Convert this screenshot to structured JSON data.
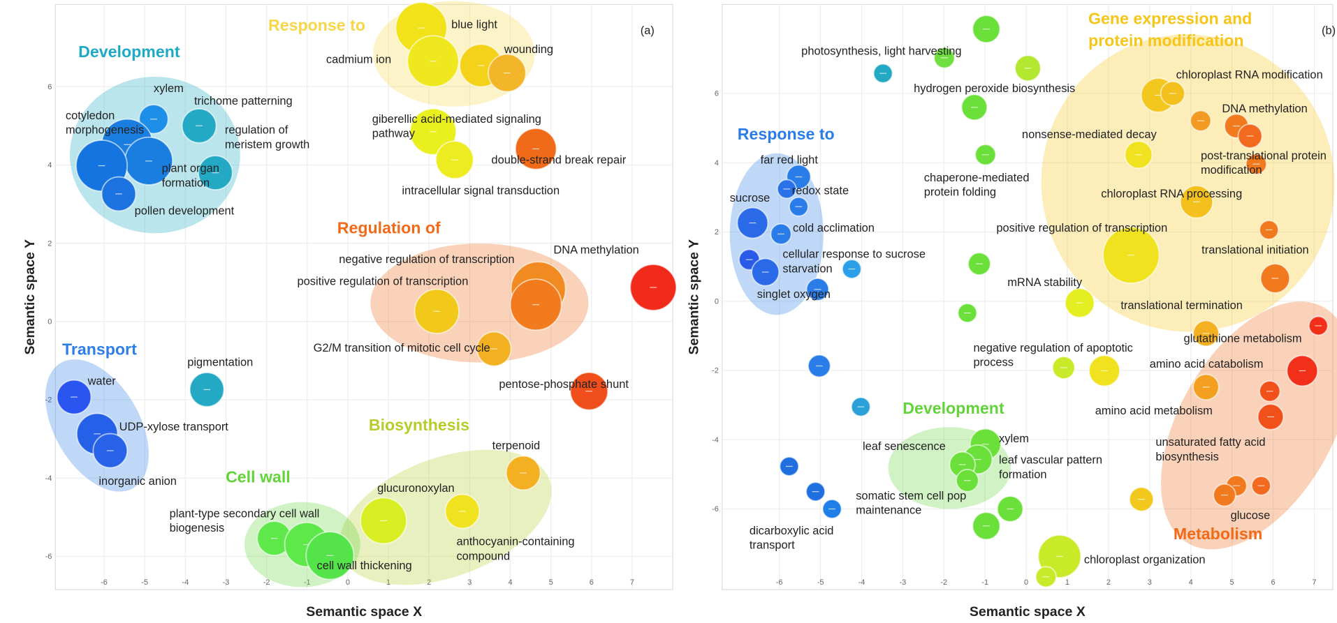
{
  "chart_data": [
    {
      "type": "scatter",
      "panel_label": "(a)",
      "x_label": "Semantic space X",
      "y_label": "Semantic space Y",
      "xlim": [
        -7.2,
        8
      ],
      "ylim": [
        -6.85,
        8.1
      ],
      "xticks": [
        -6,
        -5,
        -4,
        -3,
        -2,
        -1,
        0,
        1,
        2,
        3,
        4,
        5,
        6,
        7
      ],
      "yticks": [
        -6,
        -4,
        -2,
        0,
        2,
        4,
        6
      ],
      "grid": true,
      "groups": [
        {
          "name": [
            "Response to"
          ],
          "color": "#f7d64a"
        },
        {
          "name": [
            "Development"
          ],
          "color": "#1eaac4"
        },
        {
          "name": [
            "Regulation of"
          ],
          "color": "#f06a1a"
        },
        {
          "name": [
            "Transport"
          ],
          "color": "#2e7ee8"
        },
        {
          "name": [
            "Biosynthesis"
          ],
          "color": "#b6cc2a"
        },
        {
          "name": [
            "Cell wall"
          ],
          "color": "#62d43a"
        }
      ],
      "x": [
        -4.78,
        -3.66,
        -5.43,
        -4.9,
        -6.06,
        -5.64,
        -3.26,
        1.81,
        2.1,
        3.28,
        3.92,
        2.1,
        2.63,
        4.63,
        7.52,
        4.69,
        4.63,
        2.19,
        3.6,
        5.94,
        -6.74,
        -6.17,
        -5.85,
        -3.47,
        4.32,
        0.88,
        2.82,
        -1.81,
        -1.01,
        -0.44
      ],
      "y": [
        5.17,
        5.0,
        4.52,
        4.1,
        3.98,
        3.26,
        3.8,
        7.5,
        6.65,
        6.54,
        6.35,
        4.85,
        4.13,
        4.41,
        0.87,
        0.83,
        0.43,
        0.26,
        -0.7,
        -1.78,
        -1.93,
        -2.87,
        -3.3,
        -1.74,
        -3.87,
        -5.09,
        -4.85,
        -5.54,
        -5.7,
        -5.98
      ],
      "sizes": [
        17,
        20,
        30,
        28,
        30,
        20,
        20,
        30,
        30,
        25,
        22,
        27,
        22,
        24,
        27,
        32,
        30,
        26,
        20,
        22,
        20,
        24,
        20,
        20,
        20,
        27,
        20,
        20,
        26,
        28
      ],
      "colors": [
        "#1e8fe8",
        "#23a9c4",
        "#1a7de0",
        "#1a7de0",
        "#1575e0",
        "#1c72e0",
        "#23a9c4",
        "#f2e21a",
        "#efe81e",
        "#f4d21a",
        "#f3b52a",
        "#e9f01e",
        "#ecec20",
        "#f06a1a",
        "#f22a1a",
        "#f28a22",
        "#f27b1e",
        "#f2c81a",
        "#f3b020",
        "#f04e1a",
        "#2b55f0",
        "#2460e8",
        "#2862e8",
        "#23a9c4",
        "#f3b020",
        "#d9ee22",
        "#f0e21e",
        "#5ee84a",
        "#5ee84a",
        "#55e34a"
      ],
      "labels": [
        [
          "xylem"
        ],
        [
          "trichome patterning"
        ],
        [
          "cotyledon",
          "morphogenesis"
        ],
        null,
        [
          "plant organ",
          "formation"
        ],
        [
          "pollen development"
        ],
        [
          "regulation of",
          "meristem growth"
        ],
        [
          "blue light"
        ],
        [
          "cadmium ion"
        ],
        [
          "wounding"
        ],
        null,
        [
          "giberellic acid-mediated signaling",
          "pathway"
        ],
        [
          "intracellular signal transduction"
        ],
        [
          "double-strand break repair"
        ],
        [
          "DNA methylation"
        ],
        [
          "negative regulation of transcription"
        ],
        null,
        [
          "positive regulation of transcription"
        ],
        [
          "G2/M transition of mitotic cell cycle"
        ],
        [
          "pentose-phosphate shunt"
        ],
        [
          "water"
        ],
        [
          "UDP-xylose transport"
        ],
        [
          "inorganic anion"
        ],
        [
          "pigmentation"
        ],
        [
          "terpenoid"
        ],
        [
          "glucuronoxylan"
        ],
        [
          "anthocyanin-containing",
          "compound"
        ],
        [
          "plant-type secondary cell wall",
          "biogenesis"
        ],
        null,
        [
          "cell wall thickening"
        ]
      ]
    },
    {
      "type": "scatter",
      "panel_label": "(b)",
      "x_label": "Semantic space X",
      "y_label": "Semantic space Y",
      "xlim": [
        -7.39,
        7.45
      ],
      "ylim": [
        -8.33,
        8.57
      ],
      "xticks": [
        -6,
        -5,
        -4,
        -3,
        -2,
        -1,
        0,
        1,
        2,
        3,
        4,
        5,
        6,
        7
      ],
      "yticks": [
        -6,
        -4,
        -2,
        0,
        2,
        4,
        6
      ],
      "grid": true,
      "groups": [
        {
          "name": [
            "Gene expression and",
            "protein modification"
          ],
          "color": "#f5c518"
        },
        {
          "name": [
            "Response to"
          ],
          "color": "#2a7de8"
        },
        {
          "name": [
            "Development"
          ],
          "color": "#62d43a"
        },
        {
          "name": [
            "Metabolism"
          ],
          "color": "#f06a1a"
        }
      ],
      "x": [
        -3.48,
        -0.97,
        -1.99,
        0.04,
        -1.26,
        -0.99,
        -1.14,
        -1.43,
        -5.53,
        -5.82,
        -6.65,
        -5.53,
        -5.96,
        -6.73,
        -6.34,
        -5.07,
        -4.24,
        -5.03,
        -4.02,
        -5.76,
        -5.12,
        -4.72,
        1.3,
        0.91,
        1.9,
        -0.99,
        -1.18,
        -1.55,
        -1.43,
        -0.39,
        -0.97,
        0.81,
        0.48,
        2.8,
        3.21,
        3.56,
        4.24,
        5.11,
        5.44,
        2.73,
        5.59,
        4.14,
        5.9,
        2.55,
        6.05,
        4.37,
        7.1,
        6.71,
        4.37,
        5.92,
        5.94,
        5.11,
        5.71,
        4.82
      ],
      "y": [
        6.58,
        7.86,
        7.03,
        6.73,
        5.6,
        4.23,
        1.08,
        -0.34,
        3.59,
        3.24,
        2.26,
        2.73,
        1.94,
        1.2,
        0.84,
        0.34,
        0.93,
        -1.87,
        -3.05,
        -4.77,
        -5.5,
        -6.0,
        -0.05,
        -1.92,
        -2.01,
        -4.13,
        -4.57,
        -4.72,
        -5.18,
        -6.0,
        -6.49,
        -7.37,
        -7.96,
        -5.72,
        5.95,
        6.0,
        5.21,
        5.06,
        4.77,
        4.23,
        3.96,
        2.87,
        2.06,
        1.33,
        0.66,
        -0.93,
        -0.71,
        -2.01,
        -2.48,
        -2.6,
        -3.34,
        -5.33,
        -5.33,
        -5.6
      ],
      "sizes": [
        11,
        16,
        12,
        15,
        15,
        12,
        13,
        11,
        14,
        11,
        18,
        11,
        12,
        12,
        16,
        13,
        11,
        13,
        11,
        11,
        11,
        11,
        17,
        13,
        18,
        18,
        17,
        15,
        13,
        15,
        16,
        25,
        12,
        14,
        20,
        14,
        12,
        14,
        14,
        16,
        12,
        19,
        11,
        33,
        17,
        15,
        11,
        18,
        15,
        12,
        15,
        12,
        11,
        13
      ],
      "colors": [
        "#23a9c4",
        "#6be03a",
        "#70e040",
        "#b2e830",
        "#6be03a",
        "#6be03a",
        "#6be03a",
        "#6be03a",
        "#2a7de8",
        "#2a72e8",
        "#2a6ae8",
        "#2a7de8",
        "#2a7de8",
        "#2a5ae8",
        "#2a6ae8",
        "#2a7de8",
        "#2b9fe8",
        "#2a7de8",
        "#2aa0d6",
        "#1f6fe0",
        "#1f6fe0",
        "#1f7fe8",
        "#e4ee20",
        "#c8ea28",
        "#f0e21e",
        "#6be03a",
        "#6be03a",
        "#6be03a",
        "#6be03a",
        "#6be03a",
        "#6be03a",
        "#c8ea28",
        "#c8ea28",
        "#f3c81e",
        "#f3c81e",
        "#f3c01e",
        "#f39a22",
        "#f27a1e",
        "#f26a1e",
        "#f0e21e",
        "#f27a1e",
        "#f3c01e",
        "#f27a1e",
        "#f0e21e",
        "#f27a1e",
        "#f3b020",
        "#f2301a",
        "#f2301a",
        "#f3a020",
        "#f2501a",
        "#f2501a",
        "#f27a1e",
        "#f26a1e",
        "#f27a1e"
      ],
      "labels": [
        null,
        null,
        [
          "photosynthesis, light harvesting"
        ],
        [
          "hydrogen peroxide biosynthesis"
        ],
        null,
        [
          "chaperone-mediated",
          "protein folding"
        ],
        null,
        null,
        [
          "far red light"
        ],
        [
          "redox state"
        ],
        [
          "sucrose"
        ],
        null,
        [
          "cold acclimation"
        ],
        [
          "cellular response to sucrose",
          "starvation"
        ],
        null,
        [
          "singlet oxygen"
        ],
        null,
        null,
        null,
        null,
        null,
        [
          "dicarboxylic acid",
          "transport"
        ],
        [
          "mRNA stability"
        ],
        [
          "negative regulation of apoptotic",
          "process"
        ],
        null,
        [
          "xylem"
        ],
        [
          "leaf vascular pattern",
          "formation"
        ],
        [
          "leaf senescence"
        ],
        [
          "somatic stem cell pop",
          "maintenance"
        ],
        null,
        null,
        [
          "chloroplast organization"
        ],
        null,
        null,
        [
          "chloroplast RNA modification"
        ],
        null,
        null,
        [
          "DNA methylation"
        ],
        null,
        [
          "nonsense-mediated decay"
        ],
        [
          "post-translational protein",
          "modification"
        ],
        [
          "chloroplast RNA processing"
        ],
        null,
        [
          "positive regulation of transcription"
        ],
        [
          "translational initiation"
        ],
        [
          "translational termination"
        ],
        [
          "glutathione metabolism"
        ],
        [
          "amino acid catabolism"
        ],
        null,
        null,
        [
          "amino acid metabolism"
        ],
        [
          "unsaturated fatty acid",
          "biosynthesis"
        ],
        null,
        [
          "glucose"
        ]
      ]
    }
  ]
}
